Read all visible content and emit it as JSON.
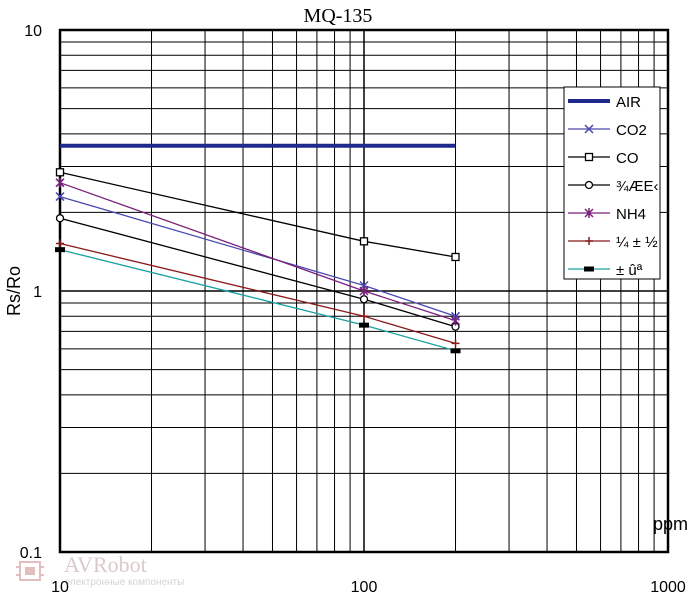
{
  "chart_data": {
    "type": "line",
    "title": "MQ-135",
    "xlabel": "ppm",
    "ylabel": "Rs/Ro",
    "x_scale": "log",
    "y_scale": "log",
    "xlim": [
      10,
      1000
    ],
    "ylim": [
      0.1,
      10
    ],
    "x_ticks": [
      "10",
      "100",
      "1000"
    ],
    "y_ticks": [
      "0.1",
      "1",
      "10"
    ],
    "grid": true,
    "legend_placement": "right",
    "series": [
      {
        "name": "AIR",
        "color": "#1f2a8c",
        "marker": "none",
        "width": 4,
        "x": [
          10,
          200
        ],
        "y": [
          3.6,
          3.6
        ]
      },
      {
        "name": "CO2",
        "color": "#4a4ab0",
        "marker": "x",
        "width": 1.3,
        "x": [
          10,
          100,
          200
        ],
        "y": [
          2.3,
          1.05,
          0.8
        ]
      },
      {
        "name": "CO",
        "color": "#000000",
        "marker": "square",
        "width": 1.3,
        "x": [
          10,
          100,
          200
        ],
        "y": [
          2.85,
          1.55,
          1.35
        ]
      },
      {
        "name": "¾ÆE‹",
        "color": "#000000",
        "marker": "circle",
        "width": 1.3,
        "x": [
          10,
          100,
          200
        ],
        "y": [
          1.9,
          0.93,
          0.73
        ]
      },
      {
        "name": "NH4",
        "color": "#7a1f7a",
        "marker": "asterisk",
        "width": 1.3,
        "x": [
          10,
          100,
          200
        ],
        "y": [
          2.6,
          1.0,
          0.77
        ]
      },
      {
        "name": "¼ ±  ½",
        "color": "#8a1a1a",
        "marker": "plus",
        "width": 1.3,
        "x": [
          10,
          100,
          200
        ],
        "y": [
          1.52,
          0.8,
          0.63
        ]
      },
      {
        "name": "± ûª",
        "color": "#1aa0a0",
        "marker": "bar",
        "width": 1.3,
        "x": [
          10,
          100,
          200
        ],
        "y": [
          1.44,
          0.74,
          0.59
        ]
      }
    ]
  },
  "watermark": {
    "brand": "AVRobot",
    "subtitle": "электронные компоненты"
  }
}
